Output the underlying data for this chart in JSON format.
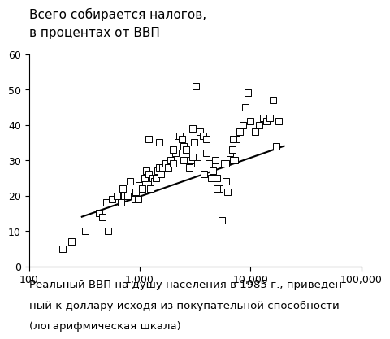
{
  "title_line1": "Всего собирается налогов,",
  "title_line2": "в процентах от ВВП",
  "xlabel_line1": "Реальный ВВП на душу населения в 1985 г., приведен-",
  "xlabel_line2": "ный к доллару исходя из покупательной способности",
  "xlabel_line3": "(логарифмическая шкала)",
  "ylim": [
    0,
    60
  ],
  "xlim_log": [
    100,
    100000
  ],
  "yticks": [
    0,
    10,
    20,
    30,
    40,
    50,
    60
  ],
  "xticks": [
    100,
    1000,
    10000,
    100000
  ],
  "xtick_labels": [
    "100",
    "1,000",
    "10,000",
    "100,000"
  ],
  "scatter_x": [
    200,
    240,
    320,
    430,
    460,
    500,
    520,
    560,
    620,
    680,
    700,
    730,
    780,
    820,
    900,
    920,
    960,
    980,
    1050,
    1100,
    1150,
    1200,
    1250,
    1300,
    1350,
    1400,
    1450,
    1500,
    1550,
    1600,
    1700,
    1800,
    1900,
    2000,
    2100,
    2200,
    2300,
    2400,
    2500,
    2600,
    2700,
    2800,
    2900,
    3000,
    3100,
    3200,
    3300,
    3500,
    3700,
    3800,
    4000,
    4200,
    4400,
    4600,
    4800,
    5000,
    5200,
    5500,
    5800,
    6000,
    6200,
    6500,
    6800,
    7000,
    7200,
    7500,
    8000,
    8500,
    9000,
    9500,
    10000,
    11000,
    12000,
    13000,
    14000,
    15000,
    16000,
    17000,
    18000,
    1200,
    1500,
    2000,
    2500,
    3000,
    4000,
    5000,
    6000,
    7000
  ],
  "scatter_y": [
    5,
    7,
    10,
    15,
    14,
    18,
    10,
    19,
    20,
    18,
    22,
    20,
    20,
    24,
    19,
    21,
    19,
    23,
    22,
    25,
    27,
    26,
    22,
    25,
    24,
    25,
    27,
    28,
    26,
    28,
    29,
    28,
    30,
    29,
    32,
    35,
    37,
    36,
    34,
    33,
    30,
    28,
    30,
    31,
    35,
    51,
    29,
    38,
    37,
    26,
    36,
    29,
    25,
    27,
    30,
    25,
    22,
    13,
    29,
    24,
    21,
    32,
    33,
    30,
    30,
    36,
    38,
    40,
    45,
    49,
    41,
    38,
    40,
    42,
    41,
    42,
    47,
    34,
    41,
    36,
    35,
    33,
    30,
    39,
    32,
    22,
    29,
    36
  ],
  "trend_x": [
    300,
    20000
  ],
  "trend_y": [
    14,
    34
  ],
  "marker_color": "white",
  "marker_edge_color": "black",
  "marker_size": 26,
  "line_color": "black",
  "background_color": "white",
  "title_fontsize": 11,
  "label_fontsize": 9.5
}
